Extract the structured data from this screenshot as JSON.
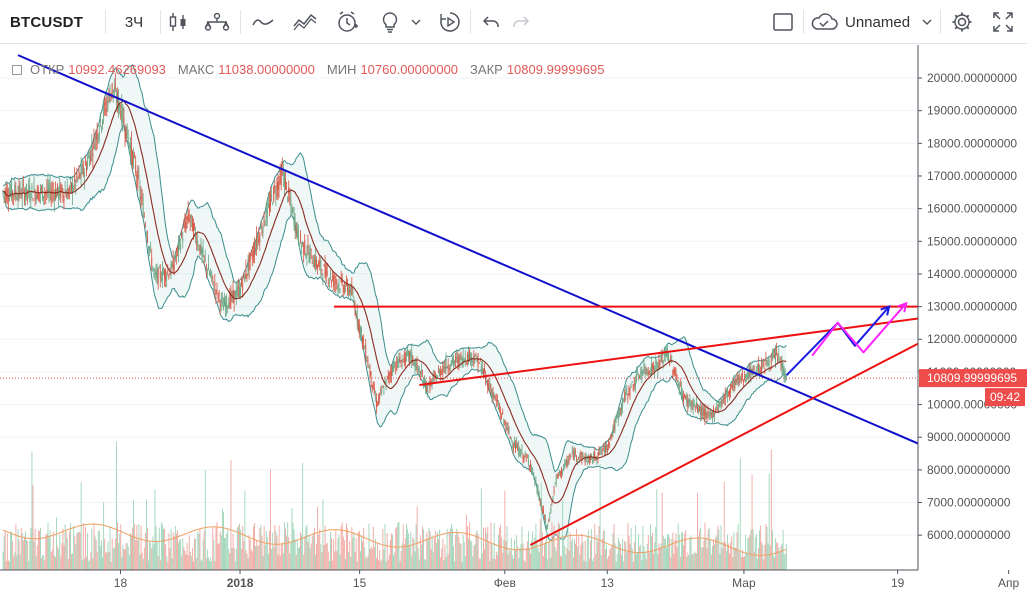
{
  "toolbar": {
    "symbol": "BTCUSDT",
    "interval": "3Ч",
    "layout_name": "Unnamed"
  },
  "legend": {
    "open_label": "ОТКР",
    "open_value": "10992.46269093",
    "high_label": "МАКС",
    "high_value": "11038.00000000",
    "low_label": "МИН",
    "low_value": "10760.00000000",
    "close_label": "ЗАКР",
    "close_value": "10809.99999695"
  },
  "colors": {
    "up": "#6ba583",
    "down": "#d75442",
    "bollinger": "#3c8d8d",
    "bollinger_fill": "rgba(120,190,190,0.12)",
    "ma": "#8b2c20",
    "trend_blue": "#1010cc",
    "trend_red": "#ee1111",
    "arrow_blue": "#1a1ae6",
    "arrow_magenta": "#ff22ff",
    "vol_up": "#9fd4b8",
    "vol_down": "#f0a7a0",
    "vol_ma": "#f0a060",
    "price_label": "#ee4b4b",
    "time_label": "#ee4b4b"
  },
  "chart_data": {
    "type": "candlestick",
    "title": "",
    "yaxis": {
      "ticks": [
        "20000.00000000",
        "19000.00000000",
        "18000.00000000",
        "17000.00000000",
        "16000.00000000",
        "15000.00000000",
        "14000.00000000",
        "13000.00000000",
        "12000.00000000",
        "11000.00000000",
        "10000.00000000",
        "9000.00000000",
        "8000.00000000",
        "7000.00000000",
        "6000.00000000"
      ],
      "ylim": [
        5300,
        20800
      ]
    },
    "xaxis": {
      "ticks": [
        "18",
        "2018",
        "15",
        "Фев",
        "13",
        "Мар",
        "19",
        "Апр"
      ]
    },
    "current_price_label": "10809.99999695",
    "countdown_label": "09:42",
    "price_path": [
      [
        "2017-12-12",
        16500
      ],
      [
        "2017-12-14",
        17300
      ],
      [
        "2017-12-17",
        19700
      ],
      [
        "2017-12-18",
        19100
      ],
      [
        "2017-12-20",
        17000
      ],
      [
        "2017-12-22",
        13900
      ],
      [
        "2017-12-24",
        14100
      ],
      [
        "2017-12-26",
        15800
      ],
      [
        "2017-12-28",
        14300
      ],
      [
        "2017-12-30",
        13000
      ],
      [
        "2018-01-01",
        13500
      ],
      [
        "2018-01-03",
        15000
      ],
      [
        "2018-01-05",
        16500
      ],
      [
        "2018-01-06",
        17100
      ],
      [
        "2018-01-08",
        15000
      ],
      [
        "2018-01-10",
        14300
      ],
      [
        "2018-01-12",
        13800
      ],
      [
        "2018-01-14",
        13500
      ],
      [
        "2018-01-16",
        11300
      ],
      [
        "2018-01-17",
        10000
      ],
      [
        "2018-01-19",
        11200
      ],
      [
        "2018-01-21",
        11500
      ],
      [
        "2018-01-23",
        10500
      ],
      [
        "2018-01-25",
        11200
      ],
      [
        "2018-01-28",
        11500
      ],
      [
        "2018-01-29",
        11300
      ],
      [
        "2018-01-31",
        10100
      ],
      [
        "2018-02-02",
        8800
      ],
      [
        "2018-02-04",
        8200
      ],
      [
        "2018-02-06",
        6200
      ],
      [
        "2018-02-07",
        7700
      ],
      [
        "2018-02-09",
        8500
      ],
      [
        "2018-02-11",
        8300
      ],
      [
        "2018-02-13",
        8700
      ],
      [
        "2018-02-15",
        10200
      ],
      [
        "2018-02-17",
        11000
      ],
      [
        "2018-02-19",
        11200
      ],
      [
        "2018-02-20",
        11600
      ],
      [
        "2018-02-22",
        10200
      ],
      [
        "2018-02-24",
        9800
      ],
      [
        "2018-02-25",
        9600
      ],
      [
        "2018-02-27",
        10300
      ],
      [
        "2018-02-28",
        10700
      ],
      [
        "2018-03-02",
        11000
      ],
      [
        "2018-03-04",
        11300
      ],
      [
        "2018-03-05",
        11500
      ],
      [
        "2018-03-06",
        10810
      ]
    ],
    "annotations": [
      {
        "kind": "line",
        "color": "trend_blue",
        "points": [
          [
            "2017-12-06",
            20700
          ],
          [
            "2018-03-25",
            8400
          ]
        ]
      },
      {
        "kind": "line",
        "color": "trend_red",
        "points": [
          [
            "2018-01-12",
            13000
          ],
          [
            "2018-03-30",
            13000
          ]
        ]
      },
      {
        "kind": "line",
        "color": "trend_red",
        "points": [
          [
            "2018-01-22",
            10600
          ],
          [
            "2018-03-29",
            12900
          ]
        ]
      },
      {
        "kind": "line",
        "color": "trend_red",
        "points": [
          [
            "2018-02-04",
            5700
          ],
          [
            "2018-03-29",
            12900
          ]
        ]
      },
      {
        "kind": "arrow",
        "color": "arrow_blue",
        "points": [
          [
            "2018-03-06",
            10900
          ],
          [
            "2018-03-12",
            12500
          ],
          [
            "2018-03-14",
            11800
          ],
          [
            "2018-03-18",
            13000
          ]
        ]
      },
      {
        "kind": "arrow",
        "color": "arrow_magenta",
        "points": [
          [
            "2018-03-09",
            11500
          ],
          [
            "2018-03-12",
            12500
          ],
          [
            "2018-03-15",
            11600
          ],
          [
            "2018-03-20",
            13100
          ]
        ]
      }
    ]
  }
}
